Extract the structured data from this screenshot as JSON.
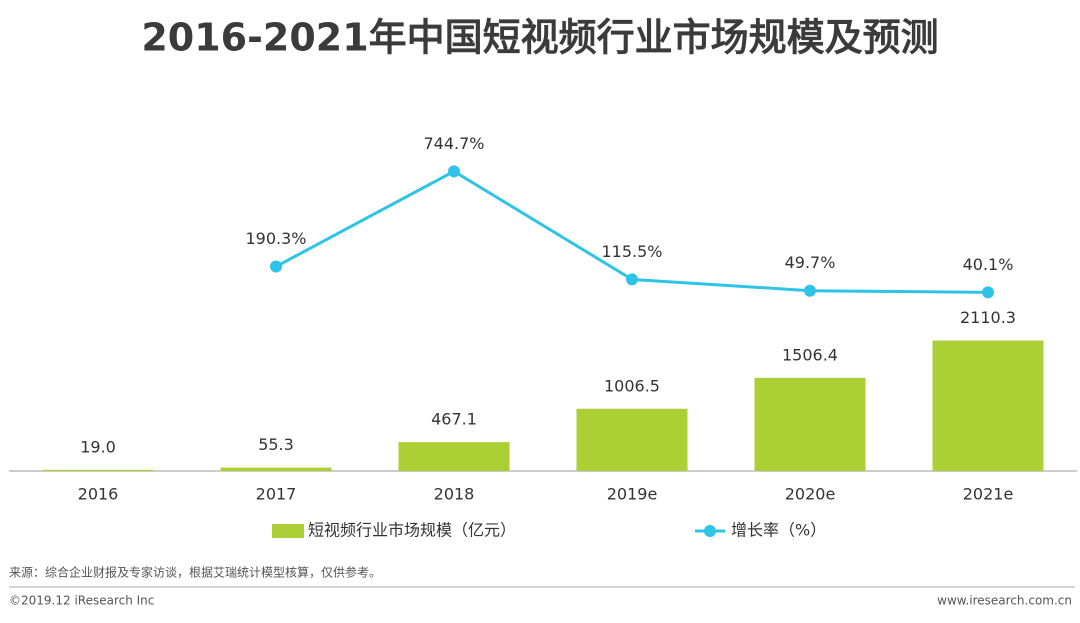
{
  "chart_data": {
    "type": "bar-line",
    "title": "2016-2021年中国短视频行业市场规模及预测",
    "categories": [
      "2016",
      "2017",
      "2018",
      "2019e",
      "2020e",
      "2021e"
    ],
    "series": [
      {
        "name": "短视频行业市场规模（亿元）",
        "type": "bar",
        "color": "#abcf35",
        "values": [
          19.0,
          55.3,
          467.1,
          1006.5,
          1506.4,
          2110.3
        ],
        "value_labels": [
          "19.0",
          "55.3",
          "467.1",
          "1006.5",
          "1506.4",
          "2110.3"
        ]
      },
      {
        "name": "增长率（%）",
        "type": "line",
        "axis": "y2",
        "color": "#2fc3e7",
        "values": [
          null,
          190.3,
          744.7,
          115.5,
          49.7,
          40.1
        ],
        "value_labels": [
          null,
          "190.3%",
          "744.7%",
          "115.5%",
          "49.7%",
          "40.1%"
        ]
      }
    ],
    "ylim": [
      0,
      6000
    ],
    "y2lim": [
      -1000,
      1160
    ],
    "source": "来源：综合企业财报及专家访谈，根据艾瑞统计模型核算，仅供参考。",
    "copyright": "©2019.12 iResearch Inc",
    "website": "www.iresearch.com.cn"
  }
}
